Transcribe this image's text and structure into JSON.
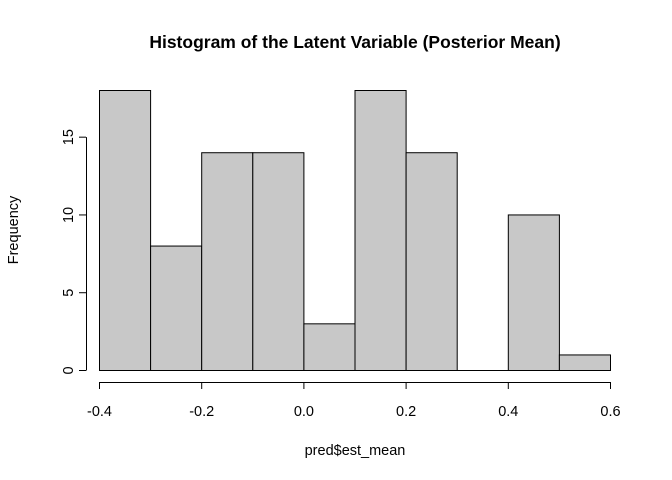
{
  "chart_data": {
    "type": "bar",
    "title": "Histogram of the Latent Variable (Posterior Mean)",
    "xlabel": "pred$est_mean",
    "ylabel": "Frequency",
    "bins": [
      {
        "start": -0.4,
        "end": -0.3,
        "count": 18
      },
      {
        "start": -0.3,
        "end": -0.2,
        "count": 8
      },
      {
        "start": -0.2,
        "end": -0.1,
        "count": 14
      },
      {
        "start": -0.1,
        "end": 0.0,
        "count": 14
      },
      {
        "start": 0.0,
        "end": 0.1,
        "count": 3
      },
      {
        "start": 0.1,
        "end": 0.2,
        "count": 18
      },
      {
        "start": 0.2,
        "end": 0.3,
        "count": 14
      },
      {
        "start": 0.3,
        "end": 0.4,
        "count": 0
      },
      {
        "start": 0.4,
        "end": 0.5,
        "count": 10
      },
      {
        "start": 0.5,
        "end": 0.6,
        "count": 1
      }
    ],
    "xlim": [
      -0.4,
      0.6
    ],
    "ylim": [
      0,
      18
    ],
    "x_ticks": [
      {
        "value": -0.4,
        "label": "-0.4"
      },
      {
        "value": -0.2,
        "label": "-0.2"
      },
      {
        "value": 0.0,
        "label": "0.0"
      },
      {
        "value": 0.2,
        "label": "0.2"
      },
      {
        "value": 0.4,
        "label": "0.4"
      },
      {
        "value": 0.6,
        "label": "0.6"
      }
    ],
    "y_ticks": [
      {
        "value": 0,
        "label": "0"
      },
      {
        "value": 5,
        "label": "5"
      },
      {
        "value": 10,
        "label": "10"
      },
      {
        "value": 15,
        "label": "15"
      }
    ],
    "colors": {
      "bar_fill": "#c8c8c8",
      "bar_stroke": "#000000"
    },
    "grid": false
  }
}
